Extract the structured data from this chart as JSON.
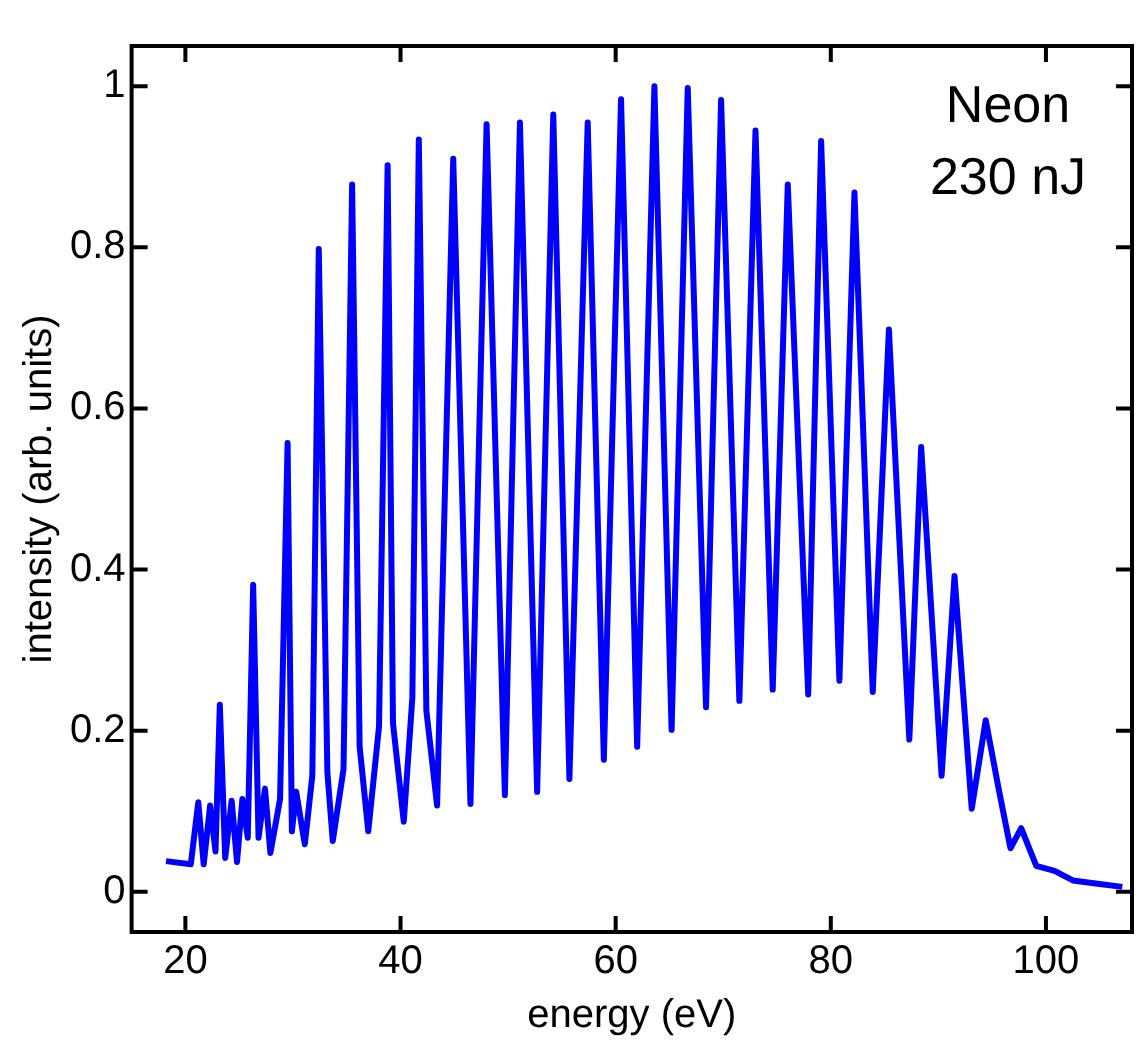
{
  "chart_data": {
    "type": "line",
    "xlabel": "energy (eV)",
    "ylabel": "intensity (arb. units)",
    "annotations": [
      "Neon",
      "230 nJ"
    ],
    "xlim": [
      15,
      108
    ],
    "xticks": [
      20,
      40,
      60,
      80,
      100
    ],
    "ylim": [
      -0.05,
      1.05
    ],
    "yticks": [
      0,
      0.2,
      0.4,
      0.6,
      0.8,
      1
    ],
    "grid": false,
    "legend": false,
    "marker": "none",
    "line_style": "solid",
    "series": [
      {
        "color": "#0000ff",
        "x": [
          18.2,
          20.5,
          21.2,
          21.7,
          22.3,
          22.8,
          23.2,
          23.7,
          24.3,
          24.8,
          25.3,
          25.8,
          26.3,
          26.8,
          27.4,
          27.9,
          28.8,
          29.5,
          29.9,
          30.3,
          31.1,
          31.8,
          32.4,
          33.2,
          33.7,
          34.7,
          35.5,
          36.2,
          37.0,
          38.0,
          38.8,
          39.3,
          40.3,
          41.1,
          41.7,
          42.4,
          43.4,
          44.9,
          46.5,
          48.0,
          49.7,
          51.1,
          52.7,
          54.2,
          55.7,
          57.4,
          58.9,
          60.5,
          62.0,
          63.6,
          65.2,
          66.7,
          68.4,
          69.8,
          71.5,
          73.0,
          74.6,
          76.0,
          77.9,
          79.1,
          80.8,
          82.2,
          83.9,
          85.4,
          87.3,
          88.4,
          90.3,
          91.5,
          93.1,
          94.4,
          95.6,
          96.7,
          97.7,
          99.1,
          100.8,
          102.5,
          104.8,
          107.1
        ],
        "values": [
          0.038,
          0.034,
          0.111,
          0.034,
          0.107,
          0.05,
          0.232,
          0.042,
          0.113,
          0.037,
          0.115,
          0.067,
          0.381,
          0.067,
          0.128,
          0.048,
          0.115,
          0.557,
          0.075,
          0.124,
          0.059,
          0.144,
          0.798,
          0.148,
          0.063,
          0.152,
          0.878,
          0.18,
          0.075,
          0.205,
          0.902,
          0.209,
          0.087,
          0.241,
          0.934,
          0.225,
          0.107,
          0.91,
          0.109,
          0.953,
          0.12,
          0.955,
          0.124,
          0.965,
          0.14,
          0.955,
          0.164,
          0.984,
          0.18,
          1.0,
          0.201,
          0.998,
          0.229,
          0.983,
          0.237,
          0.945,
          0.251,
          0.878,
          0.245,
          0.932,
          0.262,
          0.868,
          0.248,
          0.698,
          0.189,
          0.552,
          0.144,
          0.392,
          0.103,
          0.213,
          0.128,
          0.054,
          0.079,
          0.032,
          0.026,
          0.014,
          0.01,
          0.006
        ]
      }
    ]
  }
}
